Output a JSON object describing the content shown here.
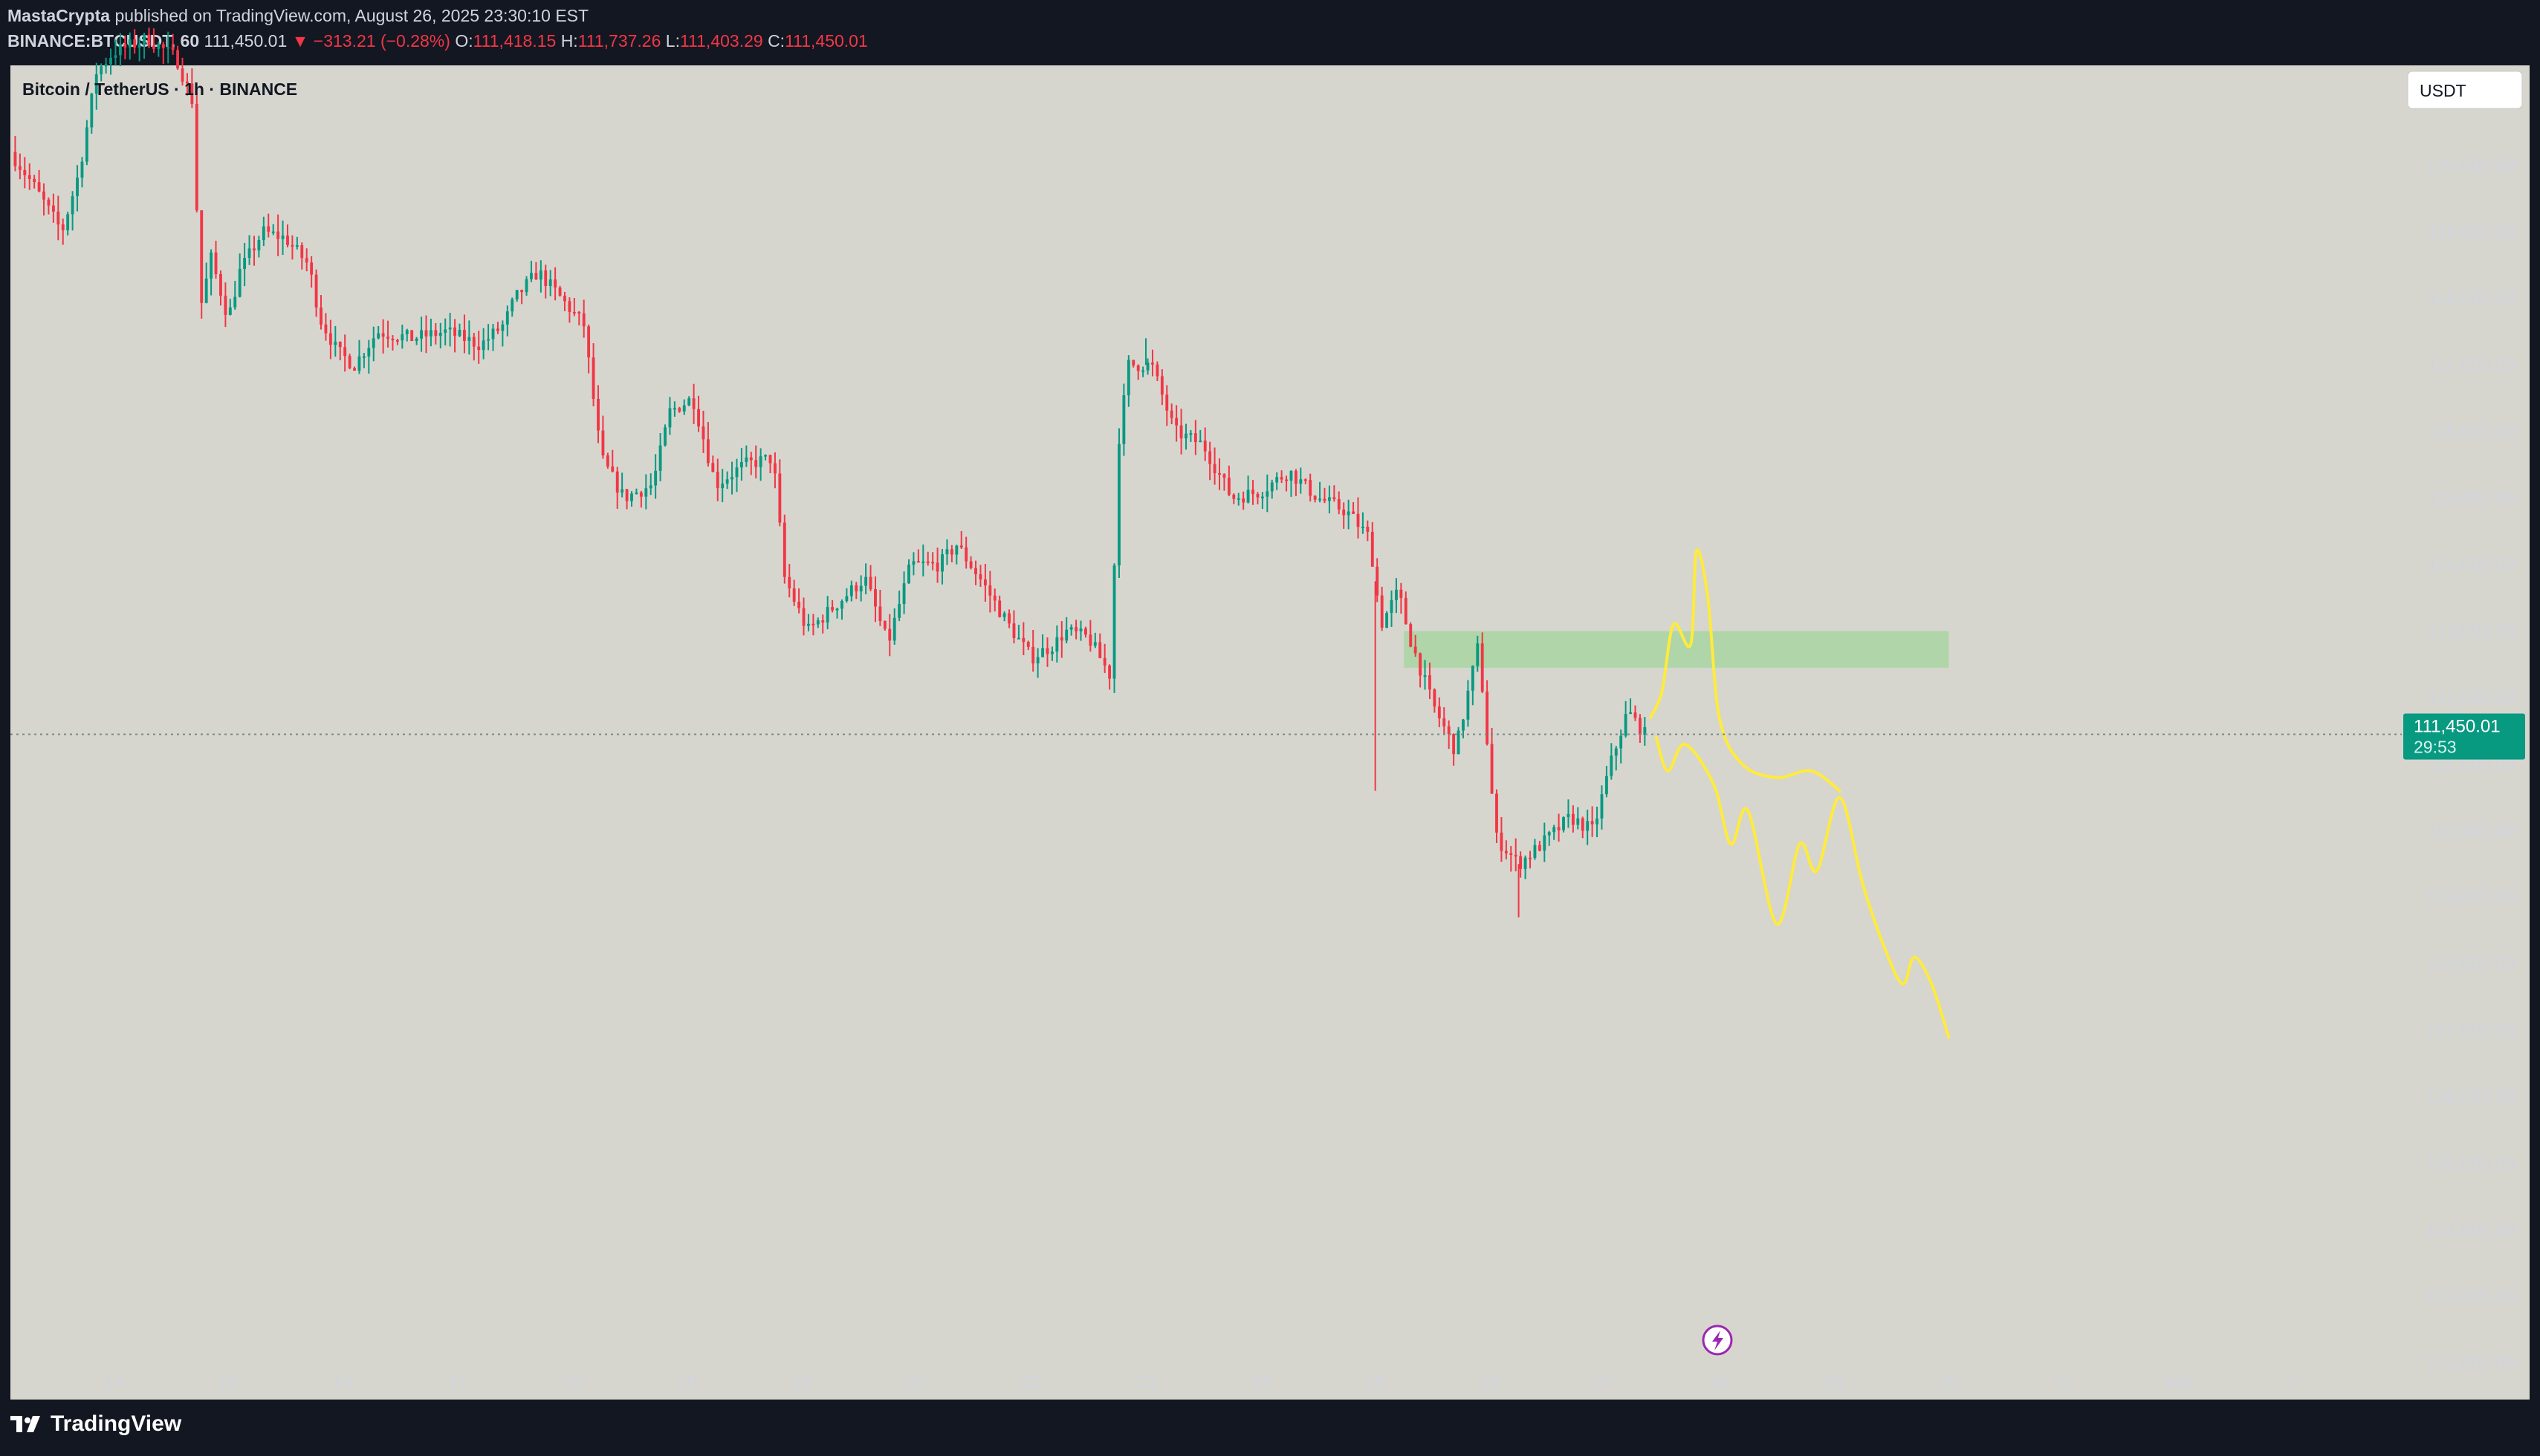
{
  "header": {
    "author": "MastaCrypta",
    "published": "published on TradingView.com, August 26, 2025 23:30:10 EST",
    "symbol": "BINANCE:BTCUSDT, 60",
    "last": "111,450.01",
    "change": "▼ −313.21 (−0.28%)",
    "o_label": "O:",
    "o_value": "111,418.15",
    "h_label": "H:",
    "h_value": "111,737.26",
    "l_label": "L:",
    "l_value": "111,403.29",
    "c_label": "C:",
    "c_value": "111,450.01"
  },
  "chart_title": "Bitcoin / TetherUS · 1h · BINANCE",
  "currency_button": "USDT",
  "price_tag": {
    "price": "111,450.01",
    "countdown": "29:53"
  },
  "footer_brand": "TradingView",
  "colors": {
    "background": "#131722",
    "plot_bg": "#d6d6cf",
    "up": "#089981",
    "down": "#f23645",
    "zone": "#a8d5a2",
    "projection": "#ffeb3b",
    "price_tag": "#089981"
  },
  "chart_data": {
    "type": "candlestick",
    "title": "Bitcoin / TetherUS · 1h · BINANCE",
    "ylim": [
      101500,
      121500
    ],
    "y_ticks": [
      "102,000.00",
      "103,000.00",
      "104,000.00",
      "105,000.00",
      "106,000.00",
      "107,000.00",
      "108,000.00",
      "109,000.00",
      "110,000.00",
      "111,000.00",
      "112,000.00",
      "113,000.00",
      "114,000.00",
      "115,000.00",
      "116,000.00",
      "117,000.00",
      "118,000.00",
      "119,000.00",
      "120,000.00",
      "121,000.00"
    ],
    "x_ticks": [
      "14",
      "15",
      "16",
      "17",
      "18",
      "19",
      "20",
      "21",
      "22",
      "23",
      "24",
      "25",
      "26",
      "27",
      "28",
      "29",
      "30",
      "31",
      "Sep",
      "2"
    ],
    "x_tick_days": [
      14,
      15,
      16,
      17,
      18,
      19,
      20,
      21,
      22,
      23,
      24,
      25,
      26,
      27,
      28,
      29,
      30,
      31,
      32,
      33
    ],
    "xlim_days": [
      13.1,
      33.95
    ],
    "last_price": 111450.01,
    "price_path": [
      [
        13.1,
        120200
      ],
      [
        13.3,
        119700
      ],
      [
        13.55,
        119000
      ],
      [
        13.7,
        119900
      ],
      [
        13.85,
        121400
      ],
      [
        14.0,
        121700
      ],
      [
        14.3,
        121900
      ],
      [
        14.55,
        121600
      ],
      [
        14.7,
        120900
      ],
      [
        14.75,
        117800
      ],
      [
        14.85,
        118600
      ],
      [
        15.0,
        117700
      ],
      [
        15.1,
        118400
      ],
      [
        15.3,
        119000
      ],
      [
        15.5,
        118900
      ],
      [
        15.7,
        118500
      ],
      [
        15.8,
        117700
      ],
      [
        15.95,
        117200
      ],
      [
        16.1,
        117000
      ],
      [
        16.3,
        117500
      ],
      [
        16.6,
        117400
      ],
      [
        16.9,
        117500
      ],
      [
        17.2,
        117300
      ],
      [
        17.4,
        117600
      ],
      [
        17.5,
        118000
      ],
      [
        17.7,
        118400
      ],
      [
        17.95,
        117900
      ],
      [
        18.1,
        117600
      ],
      [
        18.25,
        115600
      ],
      [
        18.45,
        115000
      ],
      [
        18.7,
        115200
      ],
      [
        18.85,
        116300
      ],
      [
        19.05,
        116500
      ],
      [
        19.25,
        115200
      ],
      [
        19.5,
        115500
      ],
      [
        19.75,
        115600
      ],
      [
        19.85,
        113800
      ],
      [
        20.05,
        113000
      ],
      [
        20.3,
        113400
      ],
      [
        20.55,
        113800
      ],
      [
        20.75,
        112800
      ],
      [
        20.95,
        114000
      ],
      [
        21.2,
        114000
      ],
      [
        21.35,
        114300
      ],
      [
        21.55,
        113800
      ],
      [
        21.8,
        113100
      ],
      [
        22.0,
        112600
      ],
      [
        22.2,
        112800
      ],
      [
        22.3,
        113000
      ],
      [
        22.5,
        112900
      ],
      [
        22.7,
        112300
      ],
      [
        22.75,
        115700
      ],
      [
        22.85,
        117000
      ],
      [
        23.05,
        117000
      ],
      [
        23.25,
        116000
      ],
      [
        23.5,
        115800
      ],
      [
        23.75,
        115000
      ],
      [
        24.0,
        115100
      ],
      [
        24.25,
        115400
      ],
      [
        24.5,
        115000
      ],
      [
        24.75,
        114800
      ],
      [
        24.95,
        114400
      ],
      [
        25.05,
        113100
      ],
      [
        25.2,
        113600
      ],
      [
        25.3,
        112900
      ],
      [
        25.5,
        111900
      ],
      [
        25.7,
        111200
      ],
      [
        25.9,
        112800
      ],
      [
        26.05,
        109900
      ],
      [
        26.25,
        109500
      ],
      [
        26.45,
        109800
      ],
      [
        26.7,
        110200
      ],
      [
        26.9,
        110000
      ],
      [
        27.05,
        111000
      ],
      [
        27.2,
        111800
      ],
      [
        27.35,
        111450
      ]
    ],
    "wick_extremes": [
      {
        "day": 25.0,
        "value": 110600
      },
      {
        "day": 26.25,
        "value": 108700
      },
      {
        "day": 23.0,
        "value": 117400
      }
    ],
    "zone": {
      "day_start": 25.25,
      "day_end": 30.0,
      "low": 112450,
      "high": 113000
    },
    "projection_up": [
      [
        27.4,
        111700
      ],
      [
        27.5,
        112100
      ],
      [
        27.6,
        113100
      ],
      [
        27.75,
        112800
      ],
      [
        27.8,
        114200
      ],
      [
        27.9,
        113500
      ],
      [
        28.0,
        111700
      ],
      [
        28.2,
        111000
      ],
      [
        28.5,
        110800
      ],
      [
        28.8,
        110900
      ],
      [
        29.05,
        110600
      ]
    ],
    "projection_down": [
      [
        27.45,
        111400
      ],
      [
        27.55,
        110900
      ],
      [
        27.7,
        111300
      ],
      [
        27.95,
        110700
      ],
      [
        28.1,
        109800
      ],
      [
        28.25,
        110300
      ],
      [
        28.5,
        108600
      ],
      [
        28.7,
        109800
      ],
      [
        28.85,
        109400
      ],
      [
        29.05,
        110500
      ],
      [
        29.25,
        109200
      ],
      [
        29.45,
        108200
      ],
      [
        29.6,
        107700
      ],
      [
        29.7,
        108100
      ],
      [
        29.85,
        107700
      ],
      [
        30.0,
        106900
      ]
    ]
  }
}
